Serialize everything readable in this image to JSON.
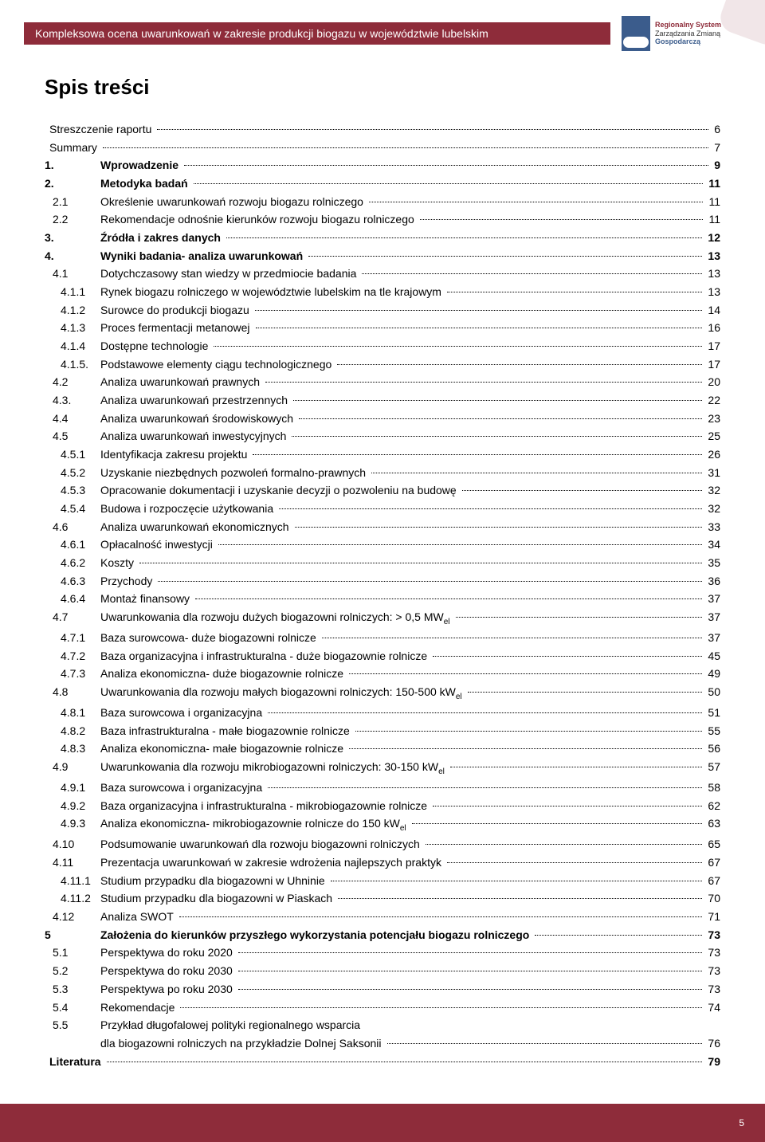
{
  "colors": {
    "brand_red": "#8e2c3a",
    "brand_blue": "#3b5c8c",
    "text": "#000000",
    "background": "#ffffff",
    "dot_color": "#000000"
  },
  "typography": {
    "base_font_family": "Segoe UI, Tahoma, Arial, sans-serif",
    "title_fontsize_pt": 20,
    "row_fontsize_pt": 10.5,
    "row_line_height": 1.62
  },
  "header": {
    "title": "Kompleksowa ocena uwarunkowań w zakresie produkcji biogazu w województwie lubelskim",
    "logo": {
      "line1": "Regionalny System",
      "line2": "Zarządzania Zmianą",
      "line3": "Gospodarczą"
    }
  },
  "toc_title": "Spis treści",
  "page_number": "5",
  "toc": [
    {
      "level": 0,
      "num": "",
      "label": "Streszczenie raportu",
      "page": "6",
      "bold": false
    },
    {
      "level": 0,
      "num": "",
      "label": "Summary",
      "page": "7",
      "bold": false
    },
    {
      "level": 1,
      "num": "1.",
      "label": "Wprowadzenie",
      "page": "9",
      "bold": true
    },
    {
      "level": 1,
      "num": "2.",
      "label": "Metodyka badań",
      "page": "11",
      "bold": true
    },
    {
      "level": 2,
      "num": "2.1",
      "label": "Określenie uwarunkowań rozwoju biogazu rolniczego",
      "page": "11",
      "bold": false
    },
    {
      "level": 2,
      "num": "2.2",
      "label": "Rekomendacje odnośnie kierunków rozwoju biogazu rolniczego",
      "page": "11",
      "bold": false
    },
    {
      "level": 1,
      "num": "3.",
      "label": "Źródła i zakres danych",
      "page": "12",
      "bold": true
    },
    {
      "level": 1,
      "num": "4.",
      "label": "Wyniki badania- analiza uwarunkowań",
      "page": "13",
      "bold": true
    },
    {
      "level": 2,
      "num": "4.1",
      "label": "Dotychczasowy stan wiedzy w przedmiocie badania",
      "page": "13",
      "bold": false
    },
    {
      "level": 3,
      "num": "4.1.1",
      "label": "Rynek biogazu rolniczego w województwie lubelskim na tle krajowym",
      "page": "13",
      "bold": false
    },
    {
      "level": 3,
      "num": "4.1.2",
      "label": "Surowce do produkcji biogazu",
      "page": "14",
      "bold": false
    },
    {
      "level": 3,
      "num": "4.1.3",
      "label": "Proces fermentacji metanowej",
      "page": "16",
      "bold": false
    },
    {
      "level": 3,
      "num": "4.1.4",
      "label": "Dostępne technologie",
      "page": "17",
      "bold": false
    },
    {
      "level": 3,
      "num": "4.1.5.",
      "label": "Podstawowe elementy ciągu technologicznego",
      "page": "17",
      "bold": false
    },
    {
      "level": 2,
      "num": "4.2",
      "label": "Analiza uwarunkowań prawnych",
      "page": "20",
      "bold": false
    },
    {
      "level": 2,
      "num": "4.3.",
      "label": "Analiza uwarunkowań przestrzennych",
      "page": "22",
      "bold": false
    },
    {
      "level": 2,
      "num": "4.4",
      "label": "Analiza uwarunkowań środowiskowych",
      "page": "23",
      "bold": false
    },
    {
      "level": 2,
      "num": "4.5",
      "label": "Analiza uwarunkowań inwestycyjnych",
      "page": "25",
      "bold": false
    },
    {
      "level": 3,
      "num": "4.5.1",
      "label": "Identyfikacja zakresu projektu",
      "page": "26",
      "bold": false
    },
    {
      "level": 3,
      "num": "4.5.2",
      "label": "Uzyskanie niezbędnych pozwoleń formalno-prawnych",
      "page": "31",
      "bold": false
    },
    {
      "level": 3,
      "num": "4.5.3",
      "label": "Opracowanie dokumentacji i uzyskanie decyzji o pozwoleniu na budowę",
      "page": "32",
      "bold": false
    },
    {
      "level": 3,
      "num": "4.5.4",
      "label": "Budowa i rozpoczęcie użytkowania",
      "page": "32",
      "bold": false
    },
    {
      "level": 2,
      "num": "4.6",
      "label": "Analiza uwarunkowań ekonomicznych",
      "page": "33",
      "bold": false
    },
    {
      "level": 3,
      "num": "4.6.1",
      "label": "Opłacalność inwestycji",
      "page": "34",
      "bold": false
    },
    {
      "level": 3,
      "num": "4.6.2",
      "label": "Koszty",
      "page": "35",
      "bold": false
    },
    {
      "level": 3,
      "num": "4.6.3",
      "label": "Przychody",
      "page": "36",
      "bold": false
    },
    {
      "level": 3,
      "num": "4.6.4",
      "label": "Montaż finansowy",
      "page": "37",
      "bold": false
    },
    {
      "level": 2,
      "num": "4.7",
      "label": "Uwarunkowania dla rozwoju dużych biogazowni rolniczych: >  0,5 MW",
      "sub": "el",
      "page": "37",
      "bold": false
    },
    {
      "level": 3,
      "num": "4.7.1",
      "label": "Baza surowcowa- duże biogazowni rolnicze",
      "page": "37",
      "bold": false
    },
    {
      "level": 3,
      "num": "4.7.2",
      "label": "Baza organizacyjna i infrastrukturalna - duże biogazownie rolnicze",
      "page": "45",
      "bold": false
    },
    {
      "level": 3,
      "num": "4.7.3",
      "label": "Analiza ekonomiczna- duże biogazownie rolnicze",
      "page": "49",
      "bold": false
    },
    {
      "level": 2,
      "num": "4.8",
      "label": "Uwarunkowania dla rozwoju małych biogazowni rolniczych: 150-500 kW",
      "sub": "el",
      "page": "50",
      "bold": false
    },
    {
      "level": 3,
      "num": "4.8.1",
      "label": "Baza surowcowa i organizacyjna",
      "page": "51",
      "bold": false
    },
    {
      "level": 3,
      "num": "4.8.2",
      "label": "Baza infrastrukturalna - małe biogazownie rolnicze",
      "page": "55",
      "bold": false
    },
    {
      "level": 3,
      "num": "4.8.3",
      "label": "Analiza ekonomiczna- małe biogazownie rolnicze",
      "page": "56",
      "bold": false
    },
    {
      "level": 2,
      "num": "4.9",
      "label": "Uwarunkowania dla rozwoju mikrobiogazowni rolniczych: 30-150 kW",
      "sub": "el",
      "page": "57",
      "bold": false
    },
    {
      "level": 3,
      "num": "4.9.1",
      "label": "Baza surowcowa i organizacyjna",
      "page": "58",
      "bold": false
    },
    {
      "level": 3,
      "num": "4.9.2",
      "label": "Baza organizacyjna i infrastrukturalna - mikrobiogazownie rolnicze",
      "page": "62",
      "bold": false
    },
    {
      "level": 3,
      "num": "4.9.3",
      "label": "Analiza ekonomiczna- mikrobiogazownie rolnicze do 150 kW",
      "sub": "el",
      "page": "63",
      "bold": false
    },
    {
      "level": 2,
      "num": "4.10",
      "label": "Podsumowanie uwarunkowań dla rozwoju biogazowni rolniczych",
      "page": "65",
      "bold": false
    },
    {
      "level": 2,
      "num": "4.11",
      "label": "Prezentacja uwarunkowań w zakresie wdrożenia najlepszych praktyk",
      "page": "67",
      "bold": false
    },
    {
      "level": 3,
      "num": "4.11.1",
      "label": "Studium przypadku dla biogazowni w Uhninie",
      "page": "67",
      "bold": false
    },
    {
      "level": 3,
      "num": "4.11.2",
      "label": "Studium przypadku dla biogazowni w Piaskach",
      "page": "70",
      "bold": false
    },
    {
      "level": 2,
      "num": "4.12",
      "label": "Analiza SWOT",
      "page": "71",
      "bold": false
    },
    {
      "level": 1,
      "num": "5",
      "label": "Założenia do kierunków przyszłego wykorzystania potencjału biogazu rolniczego",
      "page": "73",
      "bold": true
    },
    {
      "level": 2,
      "num": "5.1",
      "label": "Perspektywa do roku 2020",
      "page": "73",
      "bold": false
    },
    {
      "level": 2,
      "num": "5.2",
      "label": "Perspektywa do roku 2030",
      "page": "73",
      "bold": false
    },
    {
      "level": 2,
      "num": "5.3",
      "label": "Perspektywa po roku 2030",
      "page": "73",
      "bold": false
    },
    {
      "level": 2,
      "num": "5.4",
      "label": "Rekomendacje",
      "page": "74",
      "bold": false
    },
    {
      "level": 2,
      "num": "5.5",
      "label": "Przykład długofalowej polityki regionalnego wsparcia",
      "label2": "dla biogazowni rolniczych na przykładzie Dolnej Saksonii",
      "page": "76",
      "bold": false,
      "multiline": true
    },
    {
      "level": 0,
      "num": "",
      "label": "Literatura",
      "page": "79",
      "bold": true
    }
  ]
}
